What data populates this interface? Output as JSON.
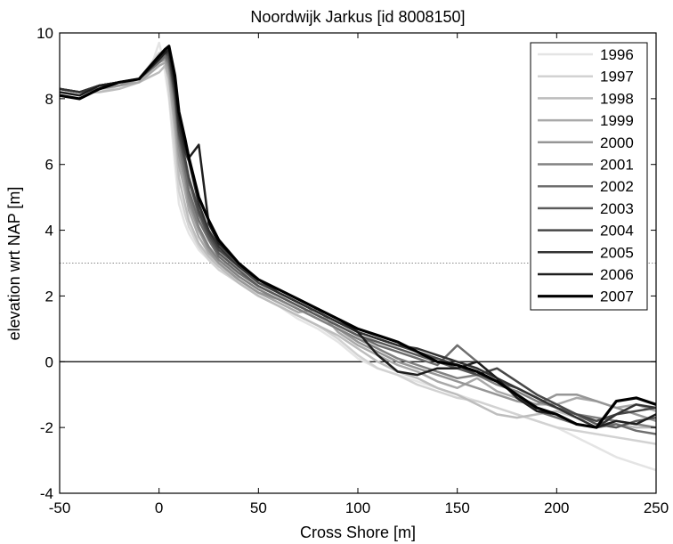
{
  "chart_data": {
    "type": "line",
    "title": "Noordwijk Jarkus [id 8008150]",
    "xlabel": "Cross Shore [m]",
    "ylabel": "elevation wrt NAP [m]",
    "xlim": [
      -50,
      250
    ],
    "ylim": [
      -4,
      10
    ],
    "xticks": [
      -50,
      0,
      50,
      100,
      150,
      200,
      250
    ],
    "yticks": [
      -4,
      -2,
      0,
      2,
      4,
      6,
      8,
      10
    ],
    "x_tick_labels": [
      "-50",
      "0",
      "50",
      "100",
      "150",
      "200",
      "250"
    ],
    "y_tick_labels": [
      "-4",
      "-2",
      "0",
      "2",
      "4",
      "6",
      "8",
      "10"
    ],
    "grid": false,
    "legend_position": "top-right",
    "reference_lines": [
      {
        "y": 0,
        "style": "solid",
        "color": "#000000"
      },
      {
        "y": 3,
        "style": "dotted",
        "color": "#888888"
      }
    ],
    "series": [
      {
        "name": "1996",
        "color": "#e4e4e4",
        "width": 2.5,
        "x": [
          -50,
          -40,
          -30,
          -20,
          -10,
          -5,
          0,
          2,
          5,
          8,
          10,
          13,
          15,
          20,
          25,
          30,
          40,
          50,
          60,
          70,
          80,
          90,
          100,
          110,
          120,
          130,
          140,
          150,
          160,
          170,
          180,
          190,
          200,
          210,
          220,
          230,
          240,
          250
        ],
        "y": [
          8.3,
          8.1,
          8.3,
          8.4,
          8.5,
          8.8,
          9.7,
          9.2,
          8.0,
          6.0,
          4.8,
          4.2,
          3.9,
          3.4,
          3.1,
          2.9,
          2.5,
          2.0,
          1.7,
          1.3,
          1.0,
          0.6,
          0.1,
          -0.2,
          -0.4,
          -0.6,
          -0.8,
          -1.0,
          -1.2,
          -1.4,
          -1.6,
          -1.8,
          -2.0,
          -2.3,
          -2.6,
          -2.9,
          -3.1,
          -3.3
        ]
      },
      {
        "name": "1997",
        "color": "#d2d2d2",
        "width": 2.5,
        "x": [
          -50,
          -40,
          -30,
          -20,
          -10,
          0,
          3,
          5,
          8,
          10,
          13,
          15,
          20,
          25,
          30,
          40,
          50,
          60,
          70,
          80,
          90,
          100,
          110,
          120,
          130,
          140,
          150,
          160,
          170,
          180,
          190,
          200,
          210,
          220,
          230,
          240,
          250
        ],
        "y": [
          8.3,
          8.2,
          8.2,
          8.4,
          8.6,
          9.4,
          9.2,
          8.2,
          6.4,
          5.2,
          4.5,
          4.1,
          3.5,
          3.1,
          2.8,
          2.4,
          2.0,
          1.7,
          1.4,
          1.1,
          0.7,
          0.2,
          -0.2,
          -0.4,
          -0.7,
          -0.9,
          -1.1,
          -1.2,
          -1.4,
          -1.6,
          -1.8,
          -2.0,
          -2.1,
          -2.2,
          -2.3,
          -2.4,
          -2.5
        ]
      },
      {
        "name": "1998",
        "color": "#bdbdbd",
        "width": 2.5,
        "x": [
          -50,
          -40,
          -30,
          -20,
          -10,
          0,
          3,
          5,
          8,
          10,
          13,
          15,
          20,
          25,
          30,
          40,
          50,
          60,
          70,
          80,
          90,
          100,
          110,
          120,
          130,
          140,
          150,
          160,
          170,
          180,
          190,
          200,
          210,
          220,
          230,
          240,
          250
        ],
        "y": [
          8.3,
          8.2,
          8.2,
          8.3,
          8.5,
          8.8,
          9.0,
          8.6,
          7.0,
          5.6,
          4.8,
          4.3,
          3.6,
          3.2,
          2.9,
          2.4,
          2.0,
          1.7,
          1.4,
          1.1,
          0.8,
          0.4,
          0.0,
          -0.3,
          -0.5,
          -0.8,
          -1.0,
          -1.3,
          -1.6,
          -1.7,
          -1.6,
          -1.5,
          -1.7,
          -1.8,
          -1.9,
          -2.0,
          -2.0
        ]
      },
      {
        "name": "1999",
        "color": "#a9a9a9",
        "width": 2.5,
        "x": [
          -50,
          -40,
          -30,
          -20,
          -10,
          0,
          3,
          5,
          8,
          10,
          13,
          15,
          20,
          25,
          30,
          40,
          50,
          60,
          70,
          80,
          90,
          100,
          110,
          120,
          130,
          140,
          150,
          160,
          170,
          180,
          190,
          200,
          210,
          220,
          230,
          240,
          250
        ],
        "y": [
          8.3,
          8.2,
          8.3,
          8.4,
          8.5,
          9.0,
          9.1,
          8.7,
          7.2,
          6.0,
          5.2,
          4.6,
          3.8,
          3.3,
          3.0,
          2.5,
          2.1,
          1.8,
          1.5,
          1.6,
          0.9,
          0.5,
          0.2,
          -0.1,
          -0.3,
          -0.6,
          -0.8,
          -0.5,
          -0.9,
          -1.1,
          -1.3,
          -1.3,
          -1.1,
          -1.2,
          -1.4,
          -1.3,
          -1.5
        ]
      },
      {
        "name": "2000",
        "color": "#969696",
        "width": 2.5,
        "x": [
          -50,
          -40,
          -30,
          -20,
          -10,
          0,
          3,
          5,
          8,
          10,
          13,
          15,
          20,
          25,
          30,
          40,
          50,
          60,
          70,
          80,
          90,
          100,
          110,
          120,
          130,
          140,
          150,
          160,
          170,
          180,
          190,
          200,
          210,
          220,
          230,
          240,
          250
        ],
        "y": [
          8.3,
          8.2,
          8.3,
          8.4,
          8.6,
          9.1,
          9.2,
          8.9,
          7.5,
          6.3,
          5.5,
          4.8,
          4.0,
          3.4,
          3.0,
          2.5,
          2.1,
          1.9,
          1.6,
          1.3,
          1.0,
          0.6,
          0.3,
          0.0,
          -0.2,
          -0.4,
          -0.6,
          -0.8,
          -1.0,
          -1.2,
          -1.3,
          -1.0,
          -1.0,
          -1.2,
          -1.4,
          -1.6,
          -1.8
        ]
      },
      {
        "name": "2001",
        "color": "#828282",
        "width": 2.5,
        "x": [
          -50,
          -40,
          -30,
          -20,
          -10,
          0,
          3,
          5,
          8,
          10,
          13,
          15,
          20,
          25,
          30,
          40,
          50,
          60,
          70,
          80,
          90,
          100,
          110,
          120,
          130,
          140,
          150,
          160,
          170,
          180,
          190,
          200,
          210,
          220,
          230,
          240,
          250
        ],
        "y": [
          8.3,
          8.2,
          8.3,
          8.5,
          8.6,
          9.1,
          9.3,
          9.0,
          7.8,
          6.6,
          5.7,
          5.0,
          4.1,
          3.5,
          3.1,
          2.6,
          2.2,
          1.9,
          1.6,
          1.3,
          1.0,
          0.7,
          0.4,
          0.1,
          -0.1,
          -0.3,
          -0.5,
          -0.4,
          -0.7,
          -0.9,
          -1.2,
          -1.4,
          -1.6,
          -1.7,
          -1.8,
          -1.9,
          -2.0
        ]
      },
      {
        "name": "2002",
        "color": "#6e6e6e",
        "width": 2.5,
        "x": [
          -50,
          -40,
          -30,
          -20,
          -10,
          0,
          3,
          5,
          8,
          10,
          13,
          15,
          20,
          25,
          30,
          40,
          50,
          60,
          70,
          80,
          90,
          100,
          110,
          120,
          130,
          140,
          150,
          160,
          170,
          180,
          190,
          200,
          210,
          220,
          230,
          240,
          250
        ],
        "y": [
          8.3,
          8.2,
          8.3,
          8.5,
          8.6,
          9.1,
          9.3,
          9.1,
          8.0,
          6.8,
          5.9,
          5.2,
          4.3,
          3.7,
          3.2,
          2.7,
          2.3,
          2.0,
          1.7,
          1.4,
          1.1,
          0.8,
          0.5,
          0.3,
          0.1,
          -0.1,
          0.5,
          0.0,
          -0.5,
          -1.0,
          -1.5,
          -1.7,
          -1.9,
          -2.0,
          -1.9,
          -2.1,
          -2.2
        ]
      },
      {
        "name": "2003",
        "color": "#5a5a5a",
        "width": 2.5,
        "x": [
          -50,
          -40,
          -30,
          -20,
          -10,
          0,
          3,
          5,
          8,
          10,
          13,
          15,
          20,
          25,
          30,
          40,
          50,
          60,
          70,
          80,
          90,
          100,
          110,
          120,
          130,
          140,
          150,
          160,
          170,
          180,
          190,
          200,
          210,
          220,
          230,
          240,
          250
        ],
        "y": [
          8.3,
          8.2,
          8.4,
          8.5,
          8.6,
          9.2,
          9.4,
          9.2,
          8.1,
          6.9,
          6.1,
          5.5,
          4.5,
          3.8,
          3.3,
          2.8,
          2.3,
          2.0,
          1.7,
          1.4,
          1.1,
          0.8,
          0.6,
          0.4,
          0.2,
          0.0,
          -0.2,
          -0.4,
          -0.6,
          -0.8,
          -1.1,
          -1.4,
          -1.6,
          -1.9,
          -2.0,
          -1.8,
          -1.7
        ]
      },
      {
        "name": "2004",
        "color": "#474747",
        "width": 2.5,
        "x": [
          -50,
          -40,
          -30,
          -20,
          -10,
          0,
          3,
          5,
          8,
          10,
          13,
          15,
          20,
          25,
          30,
          40,
          50,
          60,
          70,
          80,
          90,
          100,
          110,
          120,
          130,
          140,
          150,
          160,
          170,
          180,
          190,
          200,
          210,
          220,
          230,
          240,
          250
        ],
        "y": [
          8.3,
          8.2,
          8.4,
          8.5,
          8.6,
          9.2,
          9.4,
          9.3,
          8.2,
          7.0,
          6.2,
          5.6,
          4.6,
          3.9,
          3.4,
          2.9,
          2.4,
          2.1,
          1.8,
          1.5,
          1.2,
          0.9,
          0.7,
          0.5,
          0.3,
          0.1,
          -0.1,
          -0.4,
          -0.2,
          -0.6,
          -1.0,
          -1.3,
          -1.6,
          -1.8,
          -1.6,
          -1.5,
          -1.4
        ]
      },
      {
        "name": "2005",
        "color": "#333333",
        "width": 2.5,
        "x": [
          -50,
          -40,
          -30,
          -20,
          -10,
          0,
          3,
          5,
          8,
          10,
          13,
          15,
          20,
          25,
          30,
          40,
          50,
          60,
          70,
          80,
          90,
          100,
          110,
          120,
          130,
          140,
          150,
          160,
          170,
          180,
          190,
          200,
          210,
          220,
          230,
          240,
          250
        ],
        "y": [
          8.3,
          8.2,
          8.4,
          8.5,
          8.6,
          9.2,
          9.4,
          9.4,
          8.3,
          7.2,
          6.4,
          6.1,
          4.8,
          4.0,
          3.5,
          2.9,
          2.5,
          2.1,
          1.8,
          1.5,
          1.2,
          0.9,
          0.7,
          0.5,
          0.4,
          0.2,
          0.0,
          -0.2,
          -0.5,
          -0.8,
          -1.1,
          -1.4,
          -1.7,
          -2.0,
          -1.6,
          -1.3,
          -1.4
        ]
      },
      {
        "name": "2006",
        "color": "#1e1e1e",
        "width": 2.5,
        "x": [
          -50,
          -40,
          -30,
          -20,
          -10,
          0,
          3,
          5,
          8,
          10,
          13,
          15,
          20,
          25,
          30,
          40,
          50,
          60,
          70,
          80,
          90,
          100,
          110,
          120,
          130,
          140,
          150,
          160,
          170,
          180,
          190,
          200,
          210,
          220,
          230,
          240,
          250
        ],
        "y": [
          8.2,
          8.1,
          8.4,
          8.5,
          8.6,
          9.2,
          9.4,
          9.5,
          8.5,
          7.4,
          6.6,
          6.2,
          6.6,
          4.2,
          3.6,
          3.0,
          2.5,
          2.2,
          1.9,
          1.6,
          1.3,
          0.9,
          0.2,
          -0.3,
          -0.4,
          -0.2,
          -0.2,
          0.0,
          -0.5,
          -1.1,
          -1.5,
          -1.6,
          -1.9,
          -2.0,
          -1.8,
          -1.9,
          -1.6
        ]
      },
      {
        "name": "2007",
        "color": "#000000",
        "width": 3.2,
        "x": [
          -50,
          -40,
          -30,
          -20,
          -10,
          0,
          3,
          5,
          8,
          10,
          13,
          15,
          20,
          25,
          30,
          40,
          50,
          60,
          70,
          80,
          90,
          100,
          110,
          120,
          130,
          140,
          150,
          160,
          170,
          180,
          190,
          200,
          210,
          220,
          230,
          240,
          250
        ],
        "y": [
          8.1,
          8.0,
          8.3,
          8.5,
          8.6,
          9.3,
          9.5,
          9.6,
          8.7,
          7.6,
          6.8,
          6.2,
          5.0,
          4.3,
          3.7,
          3.0,
          2.5,
          2.2,
          1.9,
          1.6,
          1.3,
          1.0,
          0.8,
          0.6,
          0.3,
          0.0,
          -0.1,
          -0.3,
          -0.6,
          -1.0,
          -1.4,
          -1.6,
          -1.9,
          -2.0,
          -1.2,
          -1.1,
          -1.3
        ]
      }
    ]
  }
}
